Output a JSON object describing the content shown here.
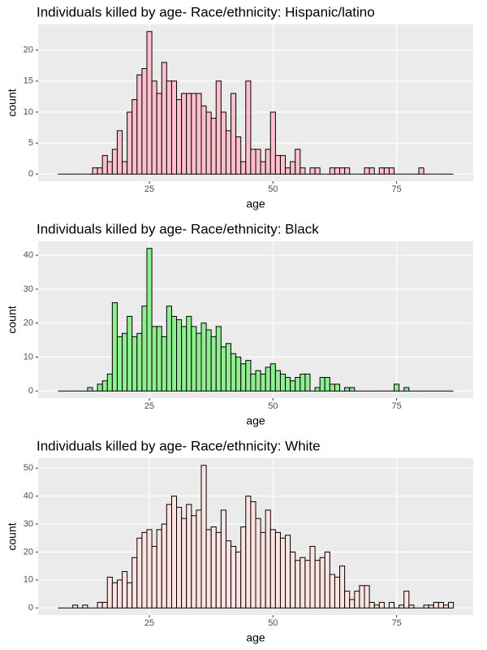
{
  "chart_data": [
    {
      "type": "histogram",
      "title": "Individuals killed by age- Race/ethnicity: Hispanic/latino",
      "xlabel": "age",
      "ylabel": "count",
      "color": "#ffc0cb",
      "grid": true,
      "bins": [
        6.5,
        7.5,
        8.5,
        9.5,
        10.5,
        11.5,
        12.5,
        13.5,
        14.5,
        15.5,
        16.5,
        17.5,
        18.5,
        19.5,
        20.5,
        21.5,
        22.5,
        23.5,
        24.5,
        25.5,
        26.5,
        27.5,
        28.5,
        29.5,
        30.5,
        31.5,
        32.5,
        33.5,
        34.5,
        35.5,
        36.5,
        37.5,
        38.5,
        39.5,
        40.5,
        41.5,
        42.5,
        43.5,
        44.5,
        45.5,
        46.5,
        47.5,
        48.5,
        49.5,
        50.5,
        51.5,
        52.5,
        53.5,
        54.5,
        55.5,
        56.5,
        57.5,
        58.5,
        59.5,
        60.5,
        61.5,
        62.5,
        63.5,
        64.5,
        65.5,
        66.5,
        67.5,
        68.5,
        69.5,
        70.5,
        71.5,
        72.5,
        73.5,
        74.5,
        75.5,
        76.5,
        77.5,
        78.5,
        79.5,
        80.5,
        81.5,
        82.5,
        83.5,
        84.5,
        85.5,
        86.5
      ],
      "values": [
        0,
        0,
        0,
        0,
        0,
        0,
        0,
        1,
        1,
        3,
        2,
        4,
        7,
        2,
        10,
        12,
        16,
        17,
        23,
        15,
        13,
        18,
        15,
        15,
        12,
        13,
        13,
        13,
        13,
        11,
        10,
        9,
        15,
        10,
        7,
        13,
        6,
        2,
        15,
        4,
        4,
        2,
        4,
        10,
        3,
        3,
        1,
        2,
        4,
        1,
        0,
        1,
        1,
        0,
        0,
        1,
        1,
        1,
        1,
        0,
        0,
        0,
        1,
        1,
        0,
        1,
        1,
        1,
        0,
        0,
        0,
        0,
        0,
        1,
        0,
        0,
        0,
        0,
        0,
        0
      ],
      "xlim": [
        2.5,
        90.5
      ],
      "xticks": [
        25,
        50,
        75
      ],
      "ylim": [
        -1.15,
        24.15
      ],
      "yticks": [
        0,
        5,
        10,
        15,
        20
      ]
    },
    {
      "type": "histogram",
      "title": "Individuals killed by age- Race/ethnicity: Black",
      "xlabel": "age",
      "ylabel": "count",
      "color": "#90ee90",
      "grid": true,
      "bins": [
        6.5,
        7.5,
        8.5,
        9.5,
        10.5,
        11.5,
        12.5,
        13.5,
        14.5,
        15.5,
        16.5,
        17.5,
        18.5,
        19.5,
        20.5,
        21.5,
        22.5,
        23.5,
        24.5,
        25.5,
        26.5,
        27.5,
        28.5,
        29.5,
        30.5,
        31.5,
        32.5,
        33.5,
        34.5,
        35.5,
        36.5,
        37.5,
        38.5,
        39.5,
        40.5,
        41.5,
        42.5,
        43.5,
        44.5,
        45.5,
        46.5,
        47.5,
        48.5,
        49.5,
        50.5,
        51.5,
        52.5,
        53.5,
        54.5,
        55.5,
        56.5,
        57.5,
        58.5,
        59.5,
        60.5,
        61.5,
        62.5,
        63.5,
        64.5,
        65.5,
        66.5,
        67.5,
        68.5,
        69.5,
        70.5,
        71.5,
        72.5,
        73.5,
        74.5,
        75.5,
        76.5,
        77.5,
        78.5,
        79.5,
        80.5,
        81.5,
        82.5,
        83.5,
        84.5,
        85.5,
        86.5
      ],
      "values": [
        0,
        0,
        0,
        0,
        0,
        0,
        1,
        0,
        2,
        3,
        5,
        26,
        16,
        17,
        22,
        16,
        17,
        25,
        42,
        19,
        19,
        16,
        25,
        22,
        21,
        19,
        22,
        19,
        17,
        20,
        18,
        16,
        19,
        13,
        14,
        11,
        10,
        8,
        9,
        5,
        6,
        5,
        7,
        8,
        6,
        5,
        4,
        3,
        4,
        5,
        5,
        0,
        1,
        4,
        4,
        2,
        2,
        0,
        1,
        1,
        0,
        0,
        0,
        0,
        0,
        0,
        0,
        0,
        2,
        0,
        1,
        0,
        0,
        0,
        0,
        0,
        0,
        0,
        0,
        0
      ],
      "xlim": [
        2.5,
        90.5
      ],
      "xticks": [
        25,
        50,
        75
      ],
      "ylim": [
        -2.1,
        44.1
      ],
      "yticks": [
        0,
        10,
        20,
        30,
        40
      ]
    },
    {
      "type": "histogram",
      "title": "Individuals killed by age- Race/ethnicity: White",
      "xlabel": "age",
      "ylabel": "count",
      "color": "#ffe4e1",
      "grid": true,
      "bins": [
        6.5,
        7.5,
        8.5,
        9.5,
        10.5,
        11.5,
        12.5,
        13.5,
        14.5,
        15.5,
        16.5,
        17.5,
        18.5,
        19.5,
        20.5,
        21.5,
        22.5,
        23.5,
        24.5,
        25.5,
        26.5,
        27.5,
        28.5,
        29.5,
        30.5,
        31.5,
        32.5,
        33.5,
        34.5,
        35.5,
        36.5,
        37.5,
        38.5,
        39.5,
        40.5,
        41.5,
        42.5,
        43.5,
        44.5,
        45.5,
        46.5,
        47.5,
        48.5,
        49.5,
        50.5,
        51.5,
        52.5,
        53.5,
        54.5,
        55.5,
        56.5,
        57.5,
        58.5,
        59.5,
        60.5,
        61.5,
        62.5,
        63.5,
        64.5,
        65.5,
        66.5,
        67.5,
        68.5,
        69.5,
        70.5,
        71.5,
        72.5,
        73.5,
        74.5,
        75.5,
        76.5,
        77.5,
        78.5,
        79.5,
        80.5,
        81.5,
        82.5,
        83.5,
        84.5,
        85.5,
        86.5
      ],
      "values": [
        0,
        0,
        0,
        1,
        0,
        1,
        0,
        0,
        2,
        2,
        11,
        9,
        10,
        13,
        9,
        18,
        25,
        27,
        28,
        22,
        28,
        30,
        37,
        40,
        36,
        32,
        37,
        33,
        35,
        51,
        28,
        29,
        27,
        35,
        24,
        22,
        20,
        29,
        40,
        38,
        32,
        27,
        35,
        28,
        27,
        25,
        26,
        20,
        17,
        18,
        17,
        22,
        17,
        18,
        20,
        12,
        11,
        15,
        6,
        3,
        6,
        8,
        8,
        2,
        1,
        2,
        0,
        2,
        0,
        1,
        6,
        1,
        0,
        0,
        1,
        1,
        2,
        2,
        1,
        2
      ],
      "xlim": [
        2.5,
        90.5
      ],
      "xticks": [
        25,
        50,
        75
      ],
      "ylim": [
        -2.55,
        53.55
      ],
      "yticks": [
        0,
        10,
        20,
        30,
        40,
        50
      ]
    }
  ]
}
